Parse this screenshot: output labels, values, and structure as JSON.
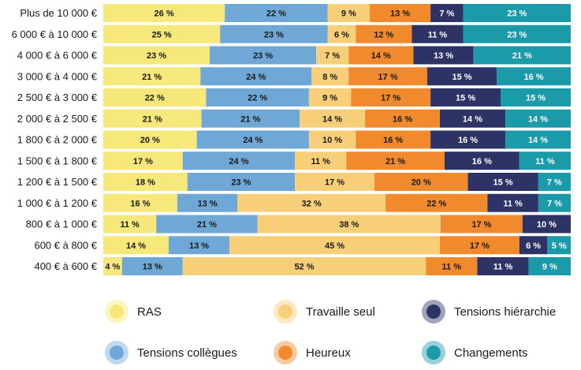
{
  "chart_data": {
    "type": "bar",
    "orientation": "horizontal",
    "stacked": true,
    "normalized_percent": true,
    "legend_position": "bottom",
    "categories": [
      "Plus de 10 000 €",
      "6 000 € à 10 000 €",
      "4 000 € à 6 000 €",
      "3 000 € à 4 000 €",
      "2 500 € à 3 000 €",
      "2 000 € à 2 500 €",
      "1 800 € à 2 000 €",
      "1 500 € à 1 800 €",
      "1 200 € à 1 500 €",
      "1 000 € à 1 200 €",
      "800 € à 1 000 €",
      "600 € à 800 €",
      "400 € à 600 €"
    ],
    "series": [
      {
        "name": "RAS",
        "color": "#f6e87a",
        "values": [
          26,
          25,
          23,
          21,
          22,
          21,
          20,
          17,
          18,
          16,
          11,
          14,
          4
        ]
      },
      {
        "name": "Tensions collègues",
        "color": "#6fa8d6",
        "values": [
          22,
          23,
          23,
          24,
          22,
          21,
          24,
          24,
          23,
          13,
          21,
          13,
          13
        ]
      },
      {
        "name": "Travaille seul",
        "color": "#f7cf78",
        "values": [
          9,
          6,
          7,
          8,
          9,
          14,
          10,
          11,
          17,
          32,
          38,
          45,
          52
        ]
      },
      {
        "name": "Heureux",
        "color": "#f08a2c",
        "values": [
          13,
          12,
          14,
          17,
          17,
          16,
          16,
          21,
          20,
          22,
          17,
          17,
          11
        ]
      },
      {
        "name": "Tensions hiérarchie",
        "color": "#2e3366",
        "values": [
          7,
          11,
          13,
          15,
          15,
          14,
          16,
          16,
          15,
          11,
          10,
          6,
          11
        ]
      },
      {
        "name": "Changements",
        "color": "#1b9aaa",
        "values": [
          23,
          23,
          21,
          16,
          15,
          14,
          14,
          11,
          7,
          7,
          null,
          5,
          9
        ]
      }
    ]
  }
}
